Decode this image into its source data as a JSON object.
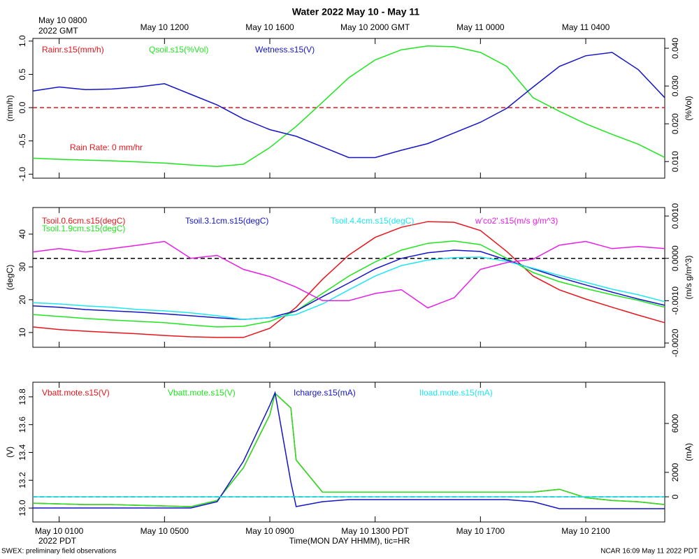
{
  "title": "Water 2022 May 10 - May 11",
  "top_corner_label": [
    "May 10 0800",
    "2022 GMT"
  ],
  "bottom_corner_label": "2022 PDT",
  "xlabel": "Time(MON DAY HHMM), tic=HR",
  "footer_left": "SWEX: preliminary field observations",
  "footer_right": "NCAR 16:09 May 11 2022 PDT",
  "chart_data": [
    {
      "type": "line",
      "x": [
        0,
        1,
        2,
        3,
        4,
        5,
        6,
        7,
        8,
        9,
        10,
        11,
        12,
        13,
        14,
        15,
        16,
        17,
        18,
        19,
        20,
        21,
        22,
        23,
        24
      ],
      "xlim": [
        0,
        24
      ],
      "x2ticks": [
        {
          "value": 5,
          "label": "May 10 1200"
        },
        {
          "value": 9,
          "label": "May 10 1600"
        },
        {
          "value": 13,
          "label": "May 10 2000 GMT"
        },
        {
          "value": 17,
          "label": "May 11 0000"
        },
        {
          "value": 21,
          "label": "May 11 0400"
        }
      ],
      "ylim": [
        -1.06,
        1.04
      ],
      "yticks": [
        {
          "value": -1,
          "label": "-1.0"
        },
        -0.5,
        {
          "value": 0,
          "label": "0.0"
        },
        0.5,
        {
          "value": 1,
          "label": "1.0"
        }
      ],
      "y2lim": [
        0.0056,
        0.0426
      ],
      "y2ticks": [
        {
          "value": 0.01,
          "label": "0.010"
        },
        {
          "value": 0.02,
          "label": "0.020"
        },
        {
          "value": 0.03,
          "label": "0.030"
        },
        {
          "value": 0.04,
          "label": "0.040"
        }
      ],
      "ylabel": "(mm/h)",
      "y2label": "(%Vol)",
      "annotation": "Rain Rate: 0 mm/hr",
      "series": [
        {
          "name": "Rainr.s15(mm/h)",
          "color": "#e8141b",
          "dashed": true,
          "values": [
            0,
            0,
            0,
            0,
            0,
            0,
            0,
            0,
            0,
            0,
            0,
            0,
            0,
            0,
            0,
            0,
            0,
            0,
            0,
            0,
            0,
            0,
            0,
            0,
            0
          ]
        },
        {
          "name": "Qsoil.s15(%Vol)",
          "color": "#1ee61e",
          "axis": "y2",
          "values": [
            0.0109,
            0.0106,
            0.0104,
            0.0102,
            0.0099,
            0.0096,
            0.0091,
            0.0087,
            0.0093,
            0.0137,
            0.0193,
            0.0257,
            0.0322,
            0.0369,
            0.0396,
            0.0406,
            0.0404,
            0.0389,
            0.0352,
            0.0269,
            0.0233,
            0.02,
            0.0172,
            0.0146,
            0.0111
          ]
        },
        {
          "name": "Wetness.s15(V)",
          "color": "#1414c8",
          "values": [
            0.25,
            0.31,
            0.27,
            0.28,
            0.31,
            0.36,
            0.2,
            0.04,
            -0.17,
            -0.33,
            -0.43,
            -0.59,
            -0.75,
            -0.75,
            -0.64,
            -0.54,
            -0.38,
            -0.22,
            -0.01,
            0.31,
            0.62,
            0.78,
            0.83,
            0.57,
            0.15
          ]
        }
      ]
    },
    {
      "type": "line",
      "x": [
        0,
        1,
        2,
        3,
        4,
        5,
        6,
        7,
        8,
        9,
        10,
        11,
        12,
        13,
        14,
        15,
        16,
        17,
        18,
        19,
        20,
        21,
        22,
        23,
        24
      ],
      "xlim": [
        0,
        24
      ],
      "ylim": [
        5.5,
        48.1
      ],
      "yticks": [
        10,
        20,
        30,
        40
      ],
      "y2lim": [
        -0.0021,
        0.0012
      ],
      "y2ticks": [
        {
          "value": -0.002,
          "label": "-0.0020"
        },
        {
          "value": -0.001,
          "label": "-0.0010"
        },
        {
          "value": 0,
          "label": "0.0000"
        },
        {
          "value": 0.001,
          "label": "0.0010"
        }
      ],
      "ylabel": "(degC)",
      "y2label": "(m/s g/m^3)",
      "series": [
        {
          "name": "Tsoil.0.6cm.s15(degC)",
          "color": "#e8141b",
          "values": [
            11.7,
            10.9,
            10.4,
            10,
            9.6,
            9.1,
            8.7,
            8.5,
            8.5,
            11.3,
            17.7,
            26.2,
            33.6,
            39,
            42.1,
            43.8,
            43.6,
            41.1,
            34.7,
            27.2,
            23,
            20.2,
            17.7,
            15.3,
            13
          ]
        },
        {
          "name": "Tsoil.1.9cm.s15(degC)",
          "color": "#1ee61e",
          "values": [
            15.5,
            14.9,
            14.3,
            13.8,
            13.4,
            13,
            12.3,
            11.7,
            11.9,
            13.4,
            16.6,
            21.9,
            27.2,
            31.5,
            35.1,
            37.2,
            37.9,
            36.8,
            32.6,
            28.3,
            25.5,
            23.4,
            21.5,
            19.8,
            17.7
          ]
        },
        {
          "name": "Tsoil.3.1cm.s15(degC)",
          "color": "#1414c8",
          "values": [
            18.1,
            17.7,
            17,
            16.6,
            16.2,
            15.7,
            15.1,
            14.5,
            14,
            14.5,
            16.6,
            20.9,
            25.1,
            29.4,
            32.6,
            34.3,
            35.1,
            34.7,
            32.1,
            29.4,
            26.8,
            24.5,
            22.3,
            20.2,
            18.3
          ]
        },
        {
          "name": "Tsoil.4.4cm.s15(degC)",
          "color": "#1ee6f0",
          "values": [
            19.1,
            18.7,
            18.1,
            17.7,
            17,
            16.6,
            16,
            15.1,
            14,
            14.5,
            15.5,
            18.7,
            23,
            27.2,
            30.4,
            32.1,
            32.8,
            33,
            31.7,
            29.6,
            27.4,
            25.3,
            23.2,
            21.5,
            19.4
          ]
        },
        {
          "name": "w'co2'.s15(m/s g/m^3)",
          "color": "#e61ee6",
          "axis": "y2",
          "values": [
            0.00015,
            0.00023,
            0.00015,
            0.00023,
            0.00031,
            0.0004,
            0,
            7e-05,
            -0.00026,
            -0.00043,
            -0.00068,
            -0.001,
            -0.001,
            -0.00083,
            -0.00074,
            -0.00117,
            -0.00093,
            -0.00026,
            -0.0001,
            -2e-05,
            0.00031,
            0.0004,
            0.00023,
            0.00028,
            0.00023
          ]
        }
      ]
    },
    {
      "type": "line",
      "x": [
        0,
        1,
        2,
        3,
        4,
        5,
        6,
        7,
        8,
        9,
        9.2,
        9.8,
        10,
        11,
        12,
        13,
        14,
        15,
        16,
        17,
        18,
        19,
        20,
        21,
        22,
        23,
        24
      ],
      "xlim": [
        0,
        24
      ],
      "xticks": [
        {
          "value": 1,
          "label": "May 10 0100"
        },
        {
          "value": 5,
          "label": "May 10 0500"
        },
        {
          "value": 9,
          "label": "May 10 0900"
        },
        {
          "value": 13,
          "label": "May 10 1300 PDT"
        },
        {
          "value": 17,
          "label": "May 10 1700"
        },
        {
          "value": 21,
          "label": "May 10 2100"
        }
      ],
      "ylim": [
        12.9,
        13.905
      ],
      "yticks": [
        {
          "value": 13,
          "label": "13.0"
        },
        13.2,
        13.4,
        13.6,
        13.8
      ],
      "y2lim": [
        -2057,
        9371
      ],
      "y2ticks": [
        0,
        2000,
        6000
      ],
      "ylabel": "(V)",
      "y2label": "(mA)",
      "series": [
        {
          "name": "Vbatt.mote.s15(V)",
          "color": "#e8141b",
          "values": [
            13.035,
            13.03,
            13.025,
            13.025,
            13.02,
            13.015,
            13.01,
            13.055,
            13.29,
            13.67,
            13.825,
            13.72,
            13.345,
            13.115,
            13.115,
            13.115,
            13.115,
            13.115,
            13.115,
            13.115,
            13.115,
            13.115,
            13.135,
            13.075,
            13.055,
            13.045,
            13.025
          ]
        },
        {
          "name": "Vbatt.mote.s15(V)",
          "color": "#1ee61e",
          "values": [
            13.035,
            13.03,
            13.025,
            13.025,
            13.02,
            13.015,
            13.01,
            13.055,
            13.29,
            13.67,
            13.825,
            13.72,
            13.345,
            13.115,
            13.115,
            13.115,
            13.115,
            13.115,
            13.115,
            13.115,
            13.115,
            13.115,
            13.135,
            13.075,
            13.055,
            13.045,
            13.025
          ]
        },
        {
          "name": "Icharge.s15(mA)",
          "color": "#1414c8",
          "axis": "y2",
          "values": [
            -914,
            -914,
            -914,
            -914,
            -914,
            -914,
            -914,
            -400,
            2914,
            7486,
            8514,
            1200,
            -800,
            -400,
            -229,
            -229,
            -229,
            -229,
            -229,
            -229,
            -229,
            -400,
            -971,
            -971,
            -971,
            -971,
            -971
          ]
        },
        {
          "name": "Iload.mote.s15(mA)",
          "color": "#1ee6f0",
          "axis": "y2",
          "values": [
            0,
            0,
            0,
            0,
            0,
            0,
            0,
            0,
            0,
            0,
            0,
            0,
            0,
            0,
            0,
            0,
            0,
            0,
            0,
            0,
            0,
            0,
            0,
            0,
            0,
            0,
            0
          ]
        }
      ]
    }
  ]
}
